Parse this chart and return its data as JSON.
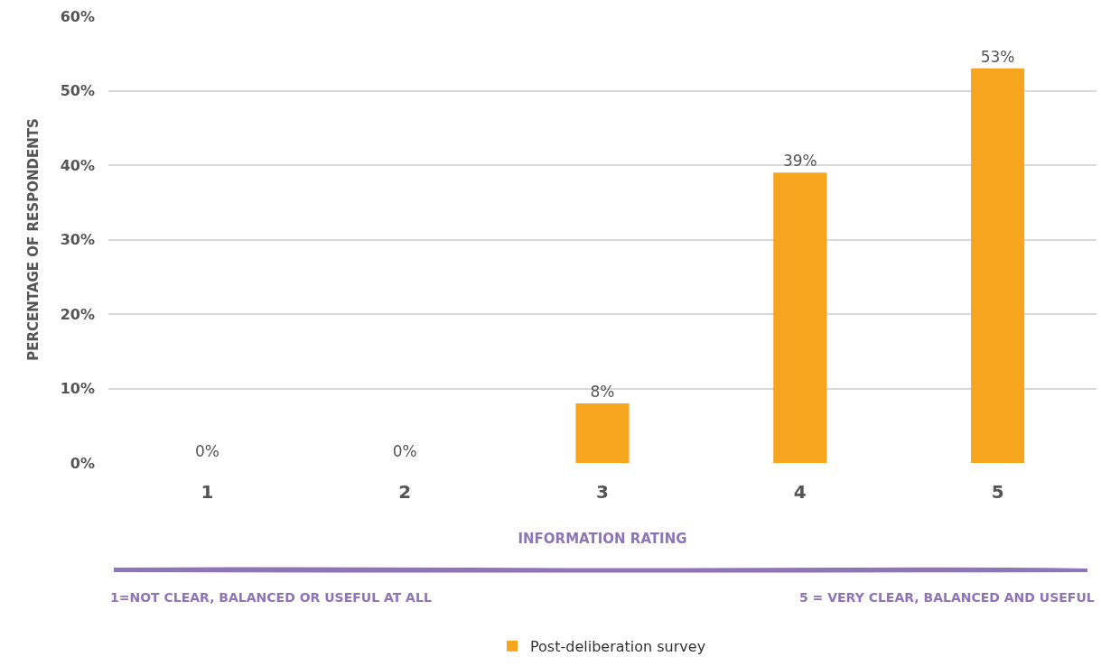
{
  "chart_data": {
    "type": "bar",
    "xlabel": "INFORMATION RATING",
    "ylabel": "PERCENTAGE OF RESPONDENTS",
    "categories": [
      "1",
      "2",
      "3",
      "4",
      "5"
    ],
    "series": [
      {
        "name": "Post-deliberation survey",
        "color": "#f7a51e",
        "values": [
          0,
          0,
          8,
          39,
          53
        ],
        "value_labels": [
          "0%",
          "0%",
          "8%",
          "39%",
          "53%"
        ]
      }
    ],
    "ylim": [
      0,
      60
    ],
    "yticks": [
      {
        "value": 0,
        "label": "0%"
      },
      {
        "value": 10,
        "label": "10%"
      },
      {
        "value": 20,
        "label": "20%"
      },
      {
        "value": 30,
        "label": "30%"
      },
      {
        "value": 40,
        "label": "40%"
      },
      {
        "value": 50,
        "label": "50%"
      },
      {
        "value": 60,
        "label": "60%"
      }
    ],
    "grid": "y",
    "legend": "bottom",
    "annotations": [
      "1=NOT CLEAR, BALANCED OR USEFUL AT ALL",
      "5 = VERY CLEAR, BALANCED AND USEFUL"
    ]
  }
}
